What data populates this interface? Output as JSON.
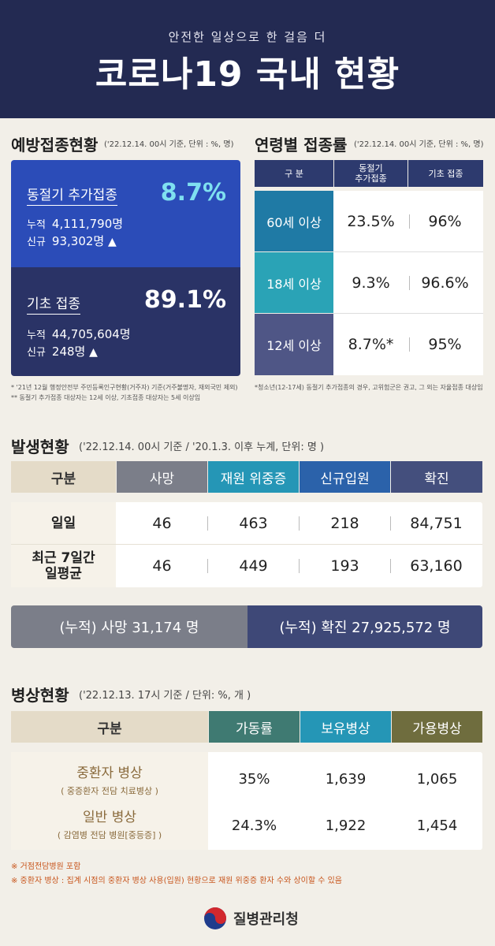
{
  "header": {
    "subtitle": "안전한 일상으로 한 걸음 더",
    "title": "코로나19 국내 현황"
  },
  "vaccination": {
    "title": "예방접종현황",
    "note": "('22.12.14. 00시 기준, 단위 : %, 명)",
    "booster": {
      "label": "동절기 추가접종",
      "pct": "8.7%",
      "cum_key": "누적",
      "cum": "4,111,790명",
      "new_key": "신규",
      "new": "93,302명",
      "arrow": "▲"
    },
    "basic": {
      "label": "기초 접종",
      "pct": "89.1%",
      "cum_key": "누적",
      "cum": "44,705,604명",
      "new_key": "신규",
      "new": "248명",
      "arrow": "▲"
    },
    "foot1": "* '21년 12월 행정안전부 주민등록인구현황(거주자) 기준(거주불명자, 재외국민 제외)",
    "foot2": "** 동절기 추가접종 대상자는 12세 이상, 기초접종 대상자는 5세 이상임"
  },
  "age": {
    "title": "연령별 접종률",
    "note": "('22.12.14. 00시 기준, 단위 : %, 명)",
    "headers": [
      "구 분",
      "동절기\n추가접종",
      "기초 접종"
    ],
    "rows": [
      {
        "label": "60세 이상",
        "booster": "23.5%",
        "basic": "96%"
      },
      {
        "label": "18세 이상",
        "booster": "9.3%",
        "basic": "96.6%"
      },
      {
        "label": "12세 이상",
        "booster": "8.7%*",
        "basic": "95%"
      }
    ],
    "foot": "*청소년(12-17세) 동절기 추가접종의 경우, 고위험군은 권고, 그 외는 자율접종 대상임"
  },
  "occurrence": {
    "title": "발생현황",
    "note": "('22.12.14. 00시 기준 / '20.1.3. 이후 누계, 단위: 명 )",
    "headers": [
      "구분",
      "사망",
      "재원 위중증",
      "신규입원",
      "확진"
    ],
    "rows": [
      {
        "label": "일일",
        "values": [
          "46",
          "463",
          "218",
          "84,751"
        ]
      },
      {
        "label": "최근 7일간\n일평균",
        "values": [
          "46",
          "449",
          "193",
          "63,160"
        ]
      }
    ],
    "cum_death": "(누적) 사망  31,174 명",
    "cum_confirmed": "(누적) 확진  27,925,572 명"
  },
  "beds": {
    "title": "병상현황",
    "note": "('22.12.13. 17시 기준 / 단위: %, 개 )",
    "headers": [
      "구분",
      "가동률",
      "보유병상",
      "가용병상"
    ],
    "rows": [
      {
        "label": "중환자 병상",
        "sub": "( 중증환자 전담 치료병상 )",
        "values": [
          "35%",
          "1,639",
          "1,065"
        ]
      },
      {
        "label": "일반 병상",
        "sub": "( 감염병 전담 병원[중등증] )",
        "values": [
          "24.3%",
          "1,922",
          "1,454"
        ]
      }
    ],
    "foot1": "※ 거점전담병원 포함",
    "foot2": "※ 중환자 병상 : 집계 시점의 중환자 병상 사용(입원) 현황으로 재원 위중증 환자 수와 상이할 수 있음"
  },
  "logo": {
    "name": "질병관리청"
  }
}
